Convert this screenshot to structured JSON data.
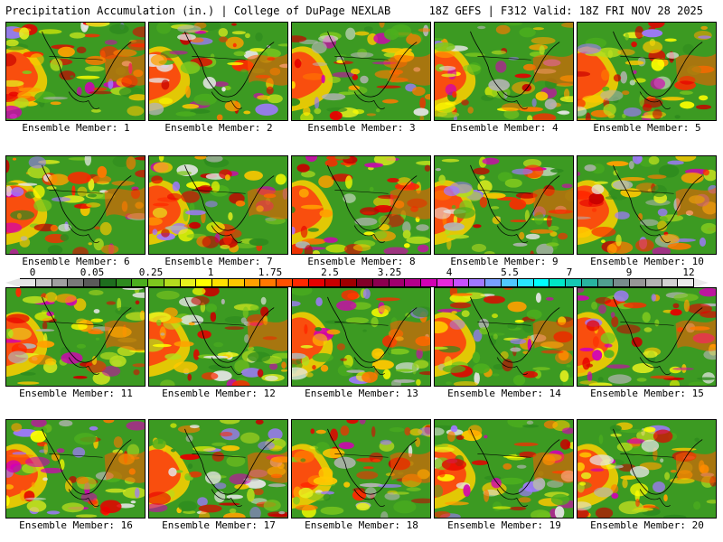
{
  "header": {
    "title_left": "Precipitation Accumulation (in.) | College of DuPage NEXLAB",
    "title_right": "18Z GEFS | F312 Valid: 18Z FRI NOV 28 2025"
  },
  "colorbar": {
    "tick_labels": [
      "0",
      "0.05",
      "0.25",
      "1",
      "1.75",
      "2.5",
      "3.25",
      "4",
      "5.5",
      "7",
      "9",
      "12"
    ],
    "colors": [
      "#e6e6e6",
      "#c8c8c8",
      "#a0a0a0",
      "#7a7a7a",
      "#5a5a5a",
      "#1e6e1e",
      "#2e8b1e",
      "#4caf1e",
      "#7ec81e",
      "#b4dc1e",
      "#e6f01e",
      "#ffff00",
      "#ffe100",
      "#ffc800",
      "#ffa000",
      "#ff7800",
      "#ff5000",
      "#ff2800",
      "#e60000",
      "#c80000",
      "#a00000",
      "#820028",
      "#8c0050",
      "#a0006e",
      "#b4008c",
      "#d200b4",
      "#e628dc",
      "#c850ff",
      "#a078ff",
      "#78a0ff",
      "#50c8ff",
      "#28e6ff",
      "#00ffff",
      "#00e6c8",
      "#14c8b4",
      "#28b4a0",
      "#50a090",
      "#788c8c",
      "#969696",
      "#b4b4b4",
      "#d2d2d2",
      "#ebebeb"
    ]
  },
  "panels": [
    {
      "label": "Ensemble Member: 1"
    },
    {
      "label": "Ensemble Member: 2"
    },
    {
      "label": "Ensemble Member: 3"
    },
    {
      "label": "Ensemble Member: 4"
    },
    {
      "label": "Ensemble Member: 5"
    },
    {
      "label": "Ensemble Member: 6"
    },
    {
      "label": "Ensemble Member: 7"
    },
    {
      "label": "Ensemble Member: 8"
    },
    {
      "label": "Ensemble Member: 9"
    },
    {
      "label": "Ensemble Member: 10"
    },
    {
      "label": "Ensemble Member: 11"
    },
    {
      "label": "Ensemble Member: 12"
    },
    {
      "label": "Ensemble Member: 13"
    },
    {
      "label": "Ensemble Member: 14"
    },
    {
      "label": "Ensemble Member: 15"
    },
    {
      "label": "Ensemble Member: 16"
    },
    {
      "label": "Ensemble Member: 17"
    },
    {
      "label": "Ensemble Member: 18"
    },
    {
      "label": "Ensemble Member: 19"
    },
    {
      "label": "Ensemble Member: 20"
    }
  ]
}
